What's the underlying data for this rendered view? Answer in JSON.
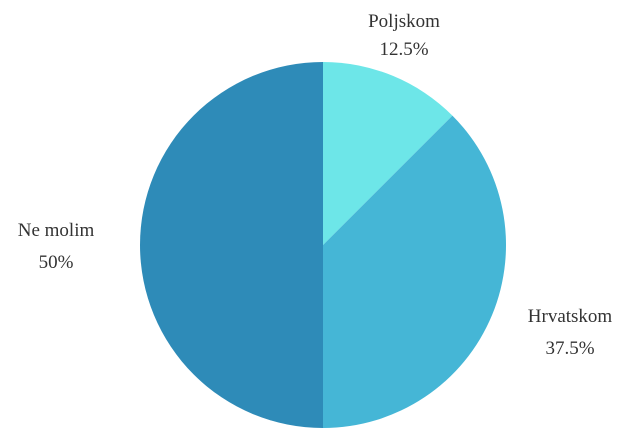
{
  "chart_data": {
    "type": "pie",
    "title": "",
    "slices": [
      {
        "label": "Poljskom",
        "value": 12.5,
        "percent_label": "12.5%",
        "color": "#6de6e8"
      },
      {
        "label": "Hrvatskom",
        "value": 37.5,
        "percent_label": "37.5%",
        "color": "#45b6d6"
      },
      {
        "label": "Ne molim",
        "value": 50,
        "percent_label": "50%",
        "color": "#2e8bb8"
      }
    ],
    "start_angle": "12 o'clock",
    "direction": "clockwise",
    "legend": "none",
    "labels": "outside"
  }
}
